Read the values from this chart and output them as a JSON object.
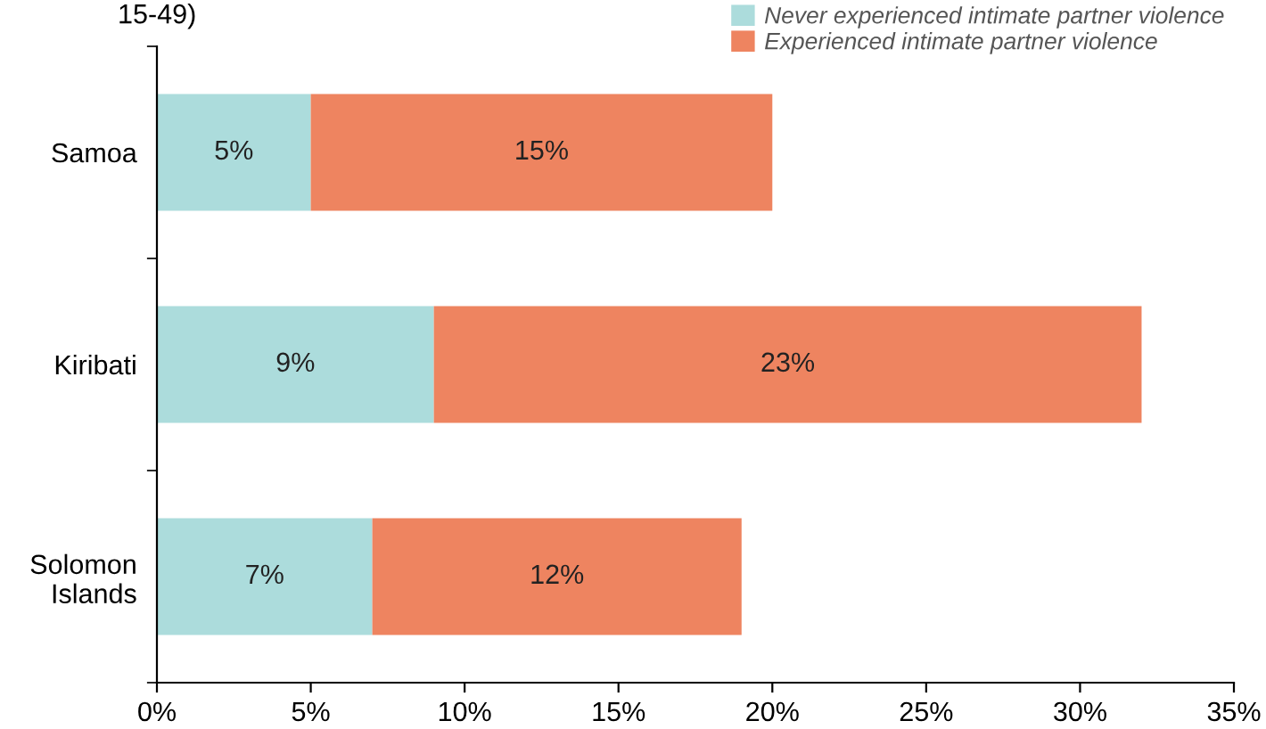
{
  "chart_data": {
    "type": "bar",
    "orientation": "horizontal",
    "stacked": true,
    "title": "15-49)",
    "categories": [
      "Samoa",
      "Kiribati",
      "Solomon\nIslands"
    ],
    "series": [
      {
        "name": "Never experienced intimate partner violence",
        "color": "#acdcdc",
        "values": [
          5,
          9,
          7
        ]
      },
      {
        "name": "Experienced intimate partner violence",
        "color": "#ee8460",
        "values": [
          15,
          23,
          12
        ]
      }
    ],
    "xlim": [
      0,
      35
    ],
    "xticks": [
      {
        "value": 0,
        "label": "0%"
      },
      {
        "value": 5,
        "label": "5%"
      },
      {
        "value": 10,
        "label": "10%"
      },
      {
        "value": 15,
        "label": "15%"
      },
      {
        "value": 20,
        "label": "20%"
      },
      {
        "value": 25,
        "label": "25%"
      },
      {
        "value": 30,
        "label": "30%"
      },
      {
        "value": 35,
        "label": "35%"
      }
    ],
    "value_labels": [
      [
        "5%",
        "9%",
        "7%"
      ],
      [
        "15%",
        "23%",
        "12%"
      ]
    ],
    "grid": false,
    "legend": "top right"
  }
}
